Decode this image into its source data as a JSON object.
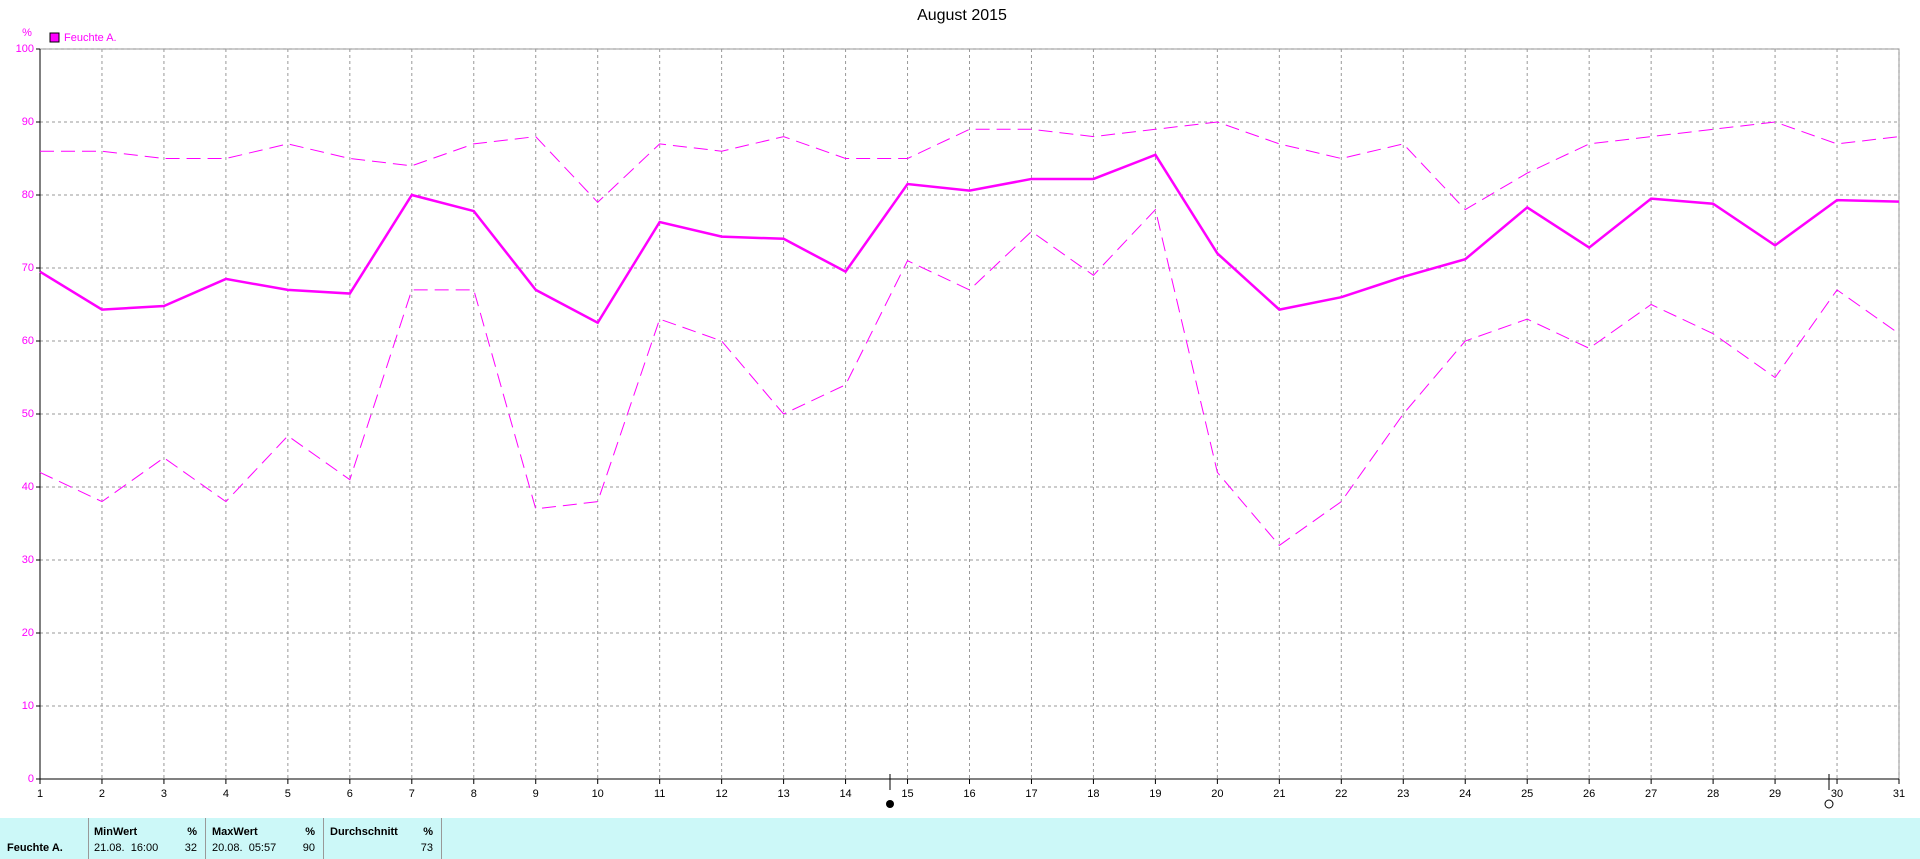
{
  "chart_data": {
    "type": "line",
    "title": "August 2015",
    "y_unit": "%",
    "x": [
      1,
      2,
      3,
      4,
      5,
      6,
      7,
      8,
      9,
      10,
      11,
      12,
      13,
      14,
      15,
      16,
      17,
      18,
      19,
      20,
      21,
      22,
      23,
      24,
      25,
      26,
      27,
      28,
      29,
      30,
      31
    ],
    "xlim": [
      1,
      31
    ],
    "xticks": [
      1,
      2,
      3,
      4,
      5,
      6,
      7,
      8,
      9,
      10,
      11,
      12,
      13,
      14,
      15,
      16,
      17,
      18,
      19,
      20,
      21,
      22,
      23,
      24,
      25,
      26,
      27,
      28,
      29,
      30,
      31
    ],
    "ylim": [
      0,
      100
    ],
    "yticks": [
      0,
      10,
      20,
      30,
      40,
      50,
      60,
      70,
      80,
      90,
      100
    ],
    "grid": true,
    "legend": "top-left",
    "series": [
      {
        "name": "Feuchte A.",
        "color": "#ff00ff",
        "dashed": false,
        "values": [
          69.5,
          64.3,
          64.8,
          68.5,
          67,
          66.5,
          80,
          77.8,
          67,
          62.5,
          76.3,
          74.3,
          74,
          69.5,
          81.5,
          80.6,
          82.2,
          82.2,
          85.5,
          72,
          64.3,
          66,
          68.8,
          71.2,
          78.3,
          72.8,
          79.5,
          78.8,
          73.1,
          79.3,
          79.1
        ]
      },
      {
        "color": "#ff00ff",
        "dashed": true,
        "values": [
          86,
          86,
          85,
          85,
          87,
          85,
          84,
          87,
          88,
          79,
          87,
          86,
          88,
          85,
          85,
          89,
          89,
          88,
          89,
          90,
          87,
          85,
          87,
          78,
          83,
          87,
          88,
          89,
          90,
          87,
          88
        ]
      },
      {
        "color": "#ff00ff",
        "dashed": true,
        "values": [
          42,
          38,
          44,
          38,
          47,
          41,
          67,
          67,
          37,
          38,
          63,
          60,
          50,
          54,
          71,
          67,
          75,
          69,
          78,
          42,
          32,
          38,
          50,
          60,
          63,
          59,
          65,
          61,
          55,
          67,
          61
        ]
      }
    ]
  },
  "summary": {
    "row_label": "Feuchte A.",
    "columns": [
      {
        "header": "MinWert",
        "unit": "%",
        "time": "21.08.  16:00",
        "value": 32
      },
      {
        "header": "MaxWert",
        "unit": "%",
        "time": "20.08.  05:57",
        "value": 90
      },
      {
        "header": "Durchschnitt",
        "unit": "%",
        "value": 73
      }
    ]
  }
}
